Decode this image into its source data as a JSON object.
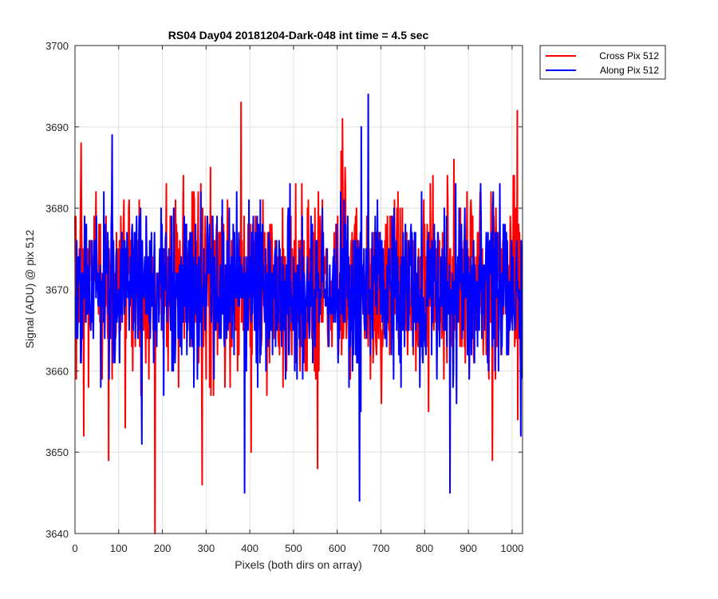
{
  "chart_data": {
    "type": "line",
    "title": "RS04 Day04 20181204-Dark-048 int time = 4.5 sec",
    "xlabel": "Pixels (both dirs on array)",
    "ylabel": "Signal (ADU) @ pix 512",
    "xlim": [
      0,
      1024
    ],
    "ylim": [
      3640,
      3700
    ],
    "xticks": [
      0,
      100,
      200,
      300,
      400,
      500,
      600,
      700,
      800,
      900,
      1000
    ],
    "yticks": [
      3640,
      3650,
      3660,
      3670,
      3680,
      3690,
      3700
    ],
    "grid": true,
    "legend_position": "outside-top-right",
    "series": [
      {
        "name": "Cross Pix 512",
        "color": "#ff0000",
        "noise_model": {
          "mean": 3670.5,
          "std": 5.8,
          "n": 1024,
          "clip": [
            3640,
            3700
          ]
        },
        "notable_points": [
          [
            183,
            3640
          ],
          [
            380,
            3693
          ],
          [
            291,
            3646
          ],
          [
            403,
            3650
          ],
          [
            555,
            3648
          ],
          [
            955,
            3649
          ],
          [
            77,
            3649
          ],
          [
            1012,
            3692
          ],
          [
            612,
            3691
          ],
          [
            20,
            3652
          ]
        ]
      },
      {
        "name": "Along Pix 512",
        "color": "#0000ff",
        "noise_model": {
          "mean": 3670.0,
          "std": 5.2,
          "n": 1024,
          "clip": [
            3640,
            3700
          ]
        },
        "notable_points": [
          [
            671,
            3694
          ],
          [
            651,
            3644
          ],
          [
            388,
            3645
          ],
          [
            858,
            3645
          ],
          [
            85,
            3689
          ],
          [
            655,
            3690
          ],
          [
            1020,
            3652
          ],
          [
            153,
            3651
          ]
        ]
      }
    ]
  }
}
